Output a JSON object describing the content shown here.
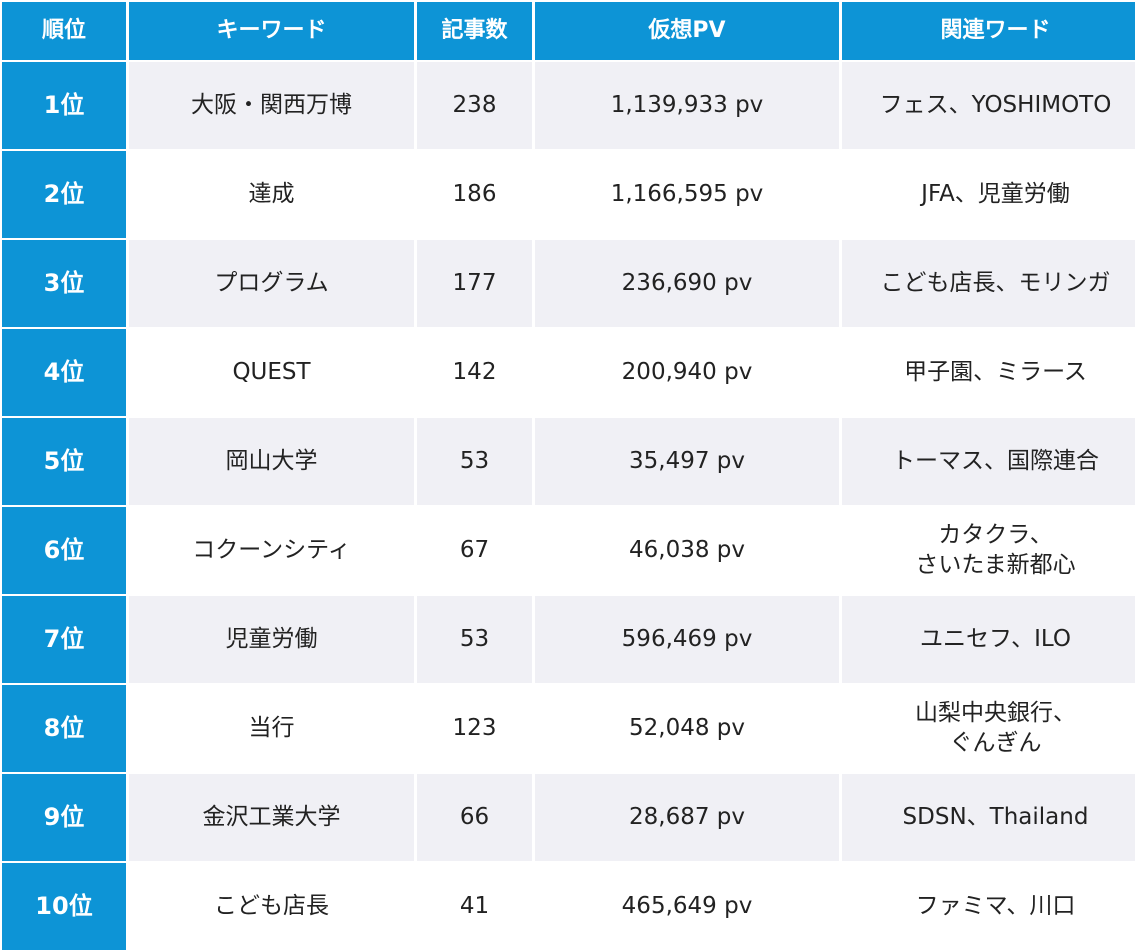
{
  "headers": [
    "順位",
    "キーワード",
    "記事数",
    "仮想PV",
    "関連ワード"
  ],
  "rows": [
    {
      "rank": "1位",
      "keyword": "大阪・関西万博",
      "articles": "238",
      "pv": "1,139,933 pv",
      "related": "フェス、YOSHIMOTO"
    },
    {
      "rank": "2位",
      "keyword": "達成",
      "articles": "186",
      "pv": "1,166,595 pv",
      "related": "JFA、児童労働"
    },
    {
      "rank": "3位",
      "keyword": "プログラム",
      "articles": "177",
      "pv": "236,690 pv",
      "related": "こども店長、モリンガ"
    },
    {
      "rank": "4位",
      "keyword": "QUEST",
      "articles": "142",
      "pv": "200,940 pv",
      "related": "甲子園、ミラース"
    },
    {
      "rank": "5位",
      "keyword": "岡山大学",
      "articles": "53",
      "pv": "35,497 pv",
      "related": "トーマス、国際連合"
    },
    {
      "rank": "6位",
      "keyword": "コクーンシティ",
      "articles": "67",
      "pv": "46,038 pv",
      "related": "カタクラ、\nさいたま新都心"
    },
    {
      "rank": "7位",
      "keyword": "児童労働",
      "articles": "53",
      "pv": "596,469 pv",
      "related": "ユニセフ、ILO"
    },
    {
      "rank": "8位",
      "keyword": "当行",
      "articles": "123",
      "pv": "52,048 pv",
      "related": "山梨中央銀行、\nぐんぎん"
    },
    {
      "rank": "9位",
      "keyword": "金沢工業大学",
      "articles": "66",
      "pv": "28,687 pv",
      "related": "SDSN、Thailand"
    },
    {
      "rank": "10位",
      "keyword": "こども店長",
      "articles": "41",
      "pv": "465,649 pv",
      "related": "ファミマ、川口"
    }
  ],
  "colors": {
    "header_bg": "#0d94d6",
    "stripe_bg": "#f0f0f5",
    "plain_bg": "#ffffff"
  }
}
